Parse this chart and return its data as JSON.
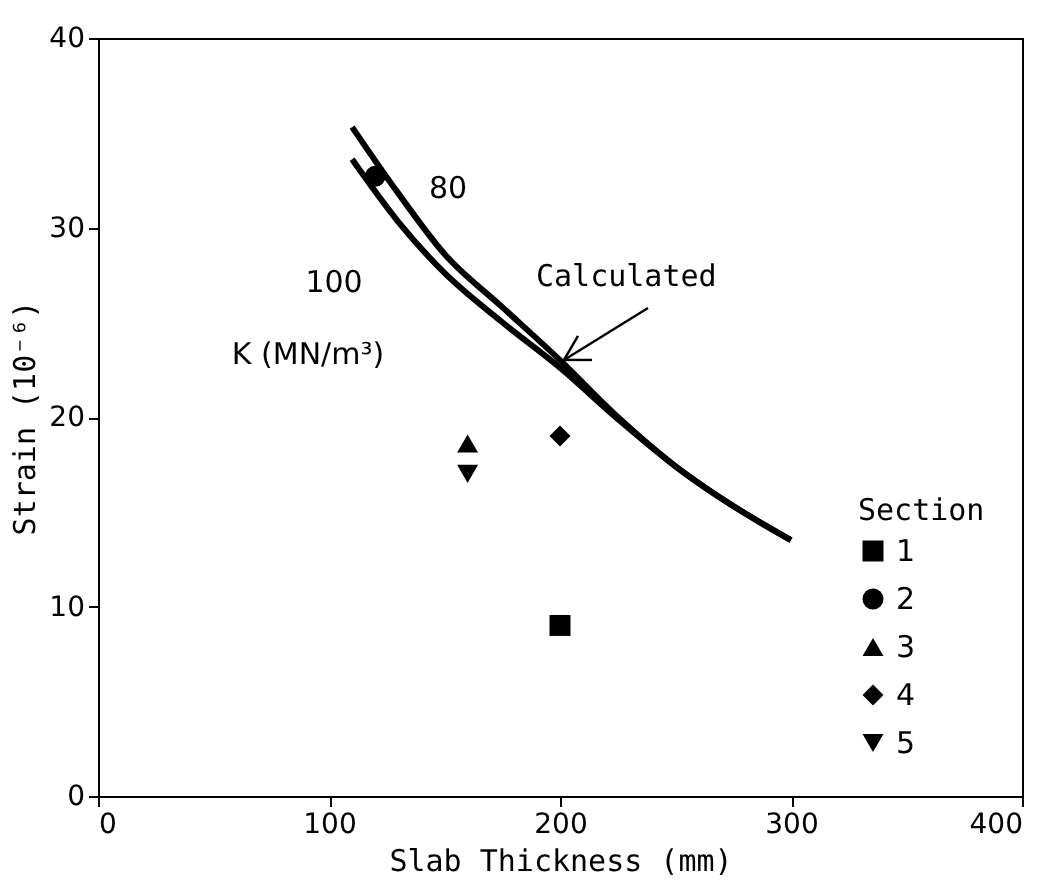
{
  "chart_data": {
    "type": "scatter",
    "xlabel": "Slab Thickness (mm)",
    "ylabel": "Strain (10⁻⁶)",
    "legend_title": "Section",
    "xlim": [
      0,
      400
    ],
    "xticks": [
      0,
      100,
      200,
      300,
      400
    ],
    "ylim": [
      0,
      40
    ],
    "yticks": [
      0,
      10,
      20,
      30,
      40
    ],
    "grid": false,
    "legend": "right",
    "series": [
      {
        "type": "line",
        "marker": "none",
        "line_style": "solid",
        "color": "#000000",
        "x": [
          110,
          130,
          150,
          175,
          200,
          225,
          250,
          275,
          300
        ],
        "values": [
          35.3,
          31.8,
          28.6,
          25.8,
          23.0,
          20.0,
          17.4,
          15.3,
          13.5
        ]
      },
      {
        "type": "line",
        "marker": "none",
        "line_style": "solid",
        "color": "#000000",
        "x": [
          110,
          130,
          150,
          175,
          200,
          225,
          250,
          275,
          300
        ],
        "values": [
          33.6,
          30.3,
          27.6,
          25.0,
          22.6,
          19.9,
          17.4,
          15.3,
          13.5
        ]
      },
      {
        "name": "1",
        "marker": "square",
        "color": "#000000",
        "x": [
          200
        ],
        "values": [
          9.0
        ]
      },
      {
        "name": "2",
        "marker": "circle",
        "color": "#000000",
        "x": [
          120
        ],
        "values": [
          32.7
        ]
      },
      {
        "name": "3",
        "marker": "triangle",
        "color": "#000000",
        "x": [
          160
        ],
        "values": [
          18.6
        ]
      },
      {
        "name": "4",
        "marker": "diamond",
        "color": "#000000",
        "x": [
          200
        ],
        "values": [
          19.0
        ]
      },
      {
        "name": "5",
        "marker": "triangle-down",
        "color": "#000000",
        "x": [
          160
        ],
        "values": [
          17.0
        ]
      }
    ],
    "annotations": [
      "80",
      "100",
      "K (MN/m³)",
      {
        "text": "Calculated",
        "x": 200,
        "y": 22.8
      }
    ]
  }
}
